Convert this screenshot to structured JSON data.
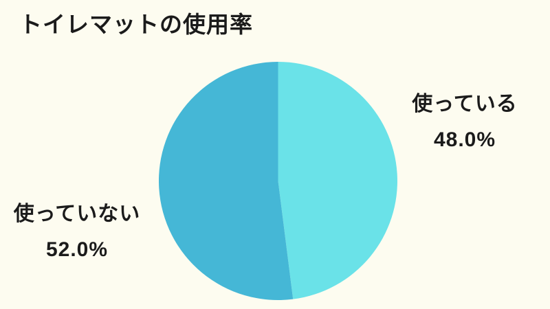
{
  "background_color": "#FDFCF0",
  "text_color": "#1B1B1B",
  "chart_data": {
    "type": "pie",
    "title": "トイレマットの使用率",
    "start_angle_deg": 0,
    "direction": "clockwise",
    "legend": "none",
    "labels_position": "outside",
    "slices": [
      {
        "label": "使っている",
        "value": 48.0,
        "pct_label": "48.0%",
        "color": "#6AE2E8"
      },
      {
        "label": "使っていない",
        "value": 52.0,
        "pct_label": "52.0%",
        "color": "#45B7D6"
      }
    ]
  }
}
